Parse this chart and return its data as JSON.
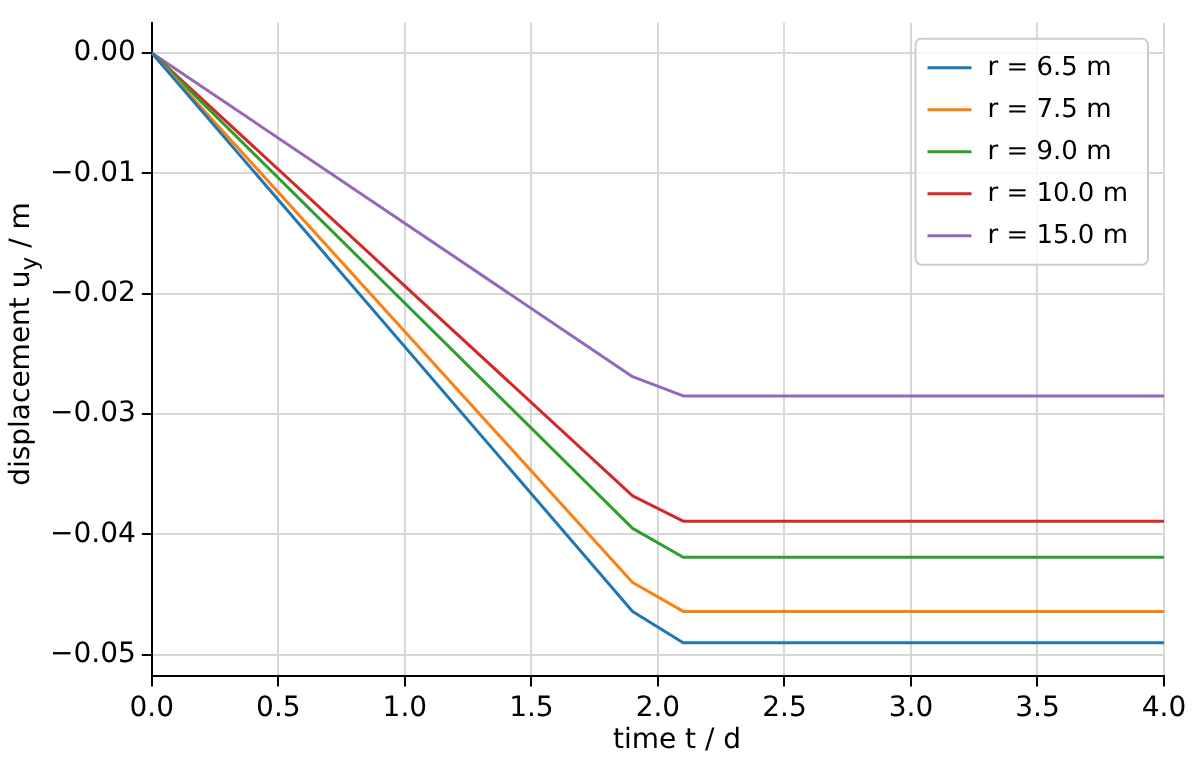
{
  "chart_data": {
    "type": "line",
    "xlabel": "time t / d",
    "ylabel": "displacement u$_{y}$ / m",
    "x": [
      0,
      1.9,
      2.1,
      4
    ],
    "series": [
      {
        "name": "r = 6.5 m",
        "color": "#1f77b4",
        "values": [
          0,
          -0.0464,
          -0.049,
          -0.049
        ]
      },
      {
        "name": "r = 7.5 m",
        "color": "#ff7f0e",
        "values": [
          0,
          -0.044,
          -0.0464,
          -0.0464
        ]
      },
      {
        "name": "r = 9.0 m",
        "color": "#2ca02c",
        "values": [
          0,
          -0.0395,
          -0.0419,
          -0.0419
        ]
      },
      {
        "name": "r = 10.0 m",
        "color": "#d62728",
        "values": [
          0,
          -0.0368,
          -0.0389,
          -0.0389
        ]
      },
      {
        "name": "r = 15.0 m",
        "color": "#9467bd",
        "values": [
          0,
          -0.0269,
          -0.0285,
          -0.0285
        ]
      }
    ],
    "xlim": [
      0,
      4
    ],
    "ylim": [
      -0.0518,
      0.0025
    ],
    "xticks": [
      {
        "value": 0,
        "label": "0.0"
      },
      {
        "value": 0.5,
        "label": "0.5"
      },
      {
        "value": 1,
        "label": "1.0"
      },
      {
        "value": 1.5,
        "label": "1.5"
      },
      {
        "value": 2,
        "label": "2.0"
      },
      {
        "value": 2.5,
        "label": "2.5"
      },
      {
        "value": 3,
        "label": "3.0"
      },
      {
        "value": 3.5,
        "label": "3.5"
      },
      {
        "value": 4,
        "label": "4.0"
      }
    ],
    "yticks": [
      {
        "value": -0.05,
        "label": "−0.05"
      },
      {
        "value": -0.04,
        "label": "−0.04"
      },
      {
        "value": -0.03,
        "label": "−0.03"
      },
      {
        "value": -0.02,
        "label": "−0.02"
      },
      {
        "value": -0.01,
        "label": "−0.01"
      },
      {
        "value": 0,
        "label": "0.00"
      }
    ],
    "grid": true,
    "legend": "top right",
    "marker": "none",
    "line_style": "solid"
  }
}
